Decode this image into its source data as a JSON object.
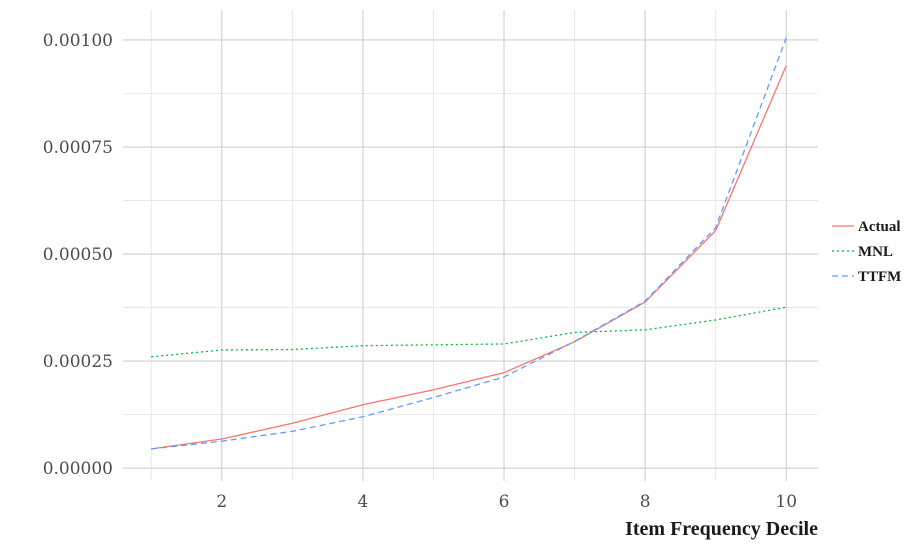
{
  "chart_data": {
    "type": "line",
    "xlabel": "Item Frequency Decile",
    "ylabel": "",
    "x": [
      1,
      2,
      3,
      4,
      5,
      6,
      7,
      8,
      9,
      10
    ],
    "xlim": [
      0.6,
      10.45
    ],
    "ylim": [
      -3e-05,
      0.00107
    ],
    "x_ticks": [
      2,
      4,
      6,
      8,
      10
    ],
    "x_tick_labels": [
      "2",
      "4",
      "6",
      "8",
      "10"
    ],
    "y_ticks": [
      0.0,
      0.00025,
      0.0005,
      0.00075,
      0.001
    ],
    "y_tick_labels": [
      "0.00000",
      "0.00025",
      "0.00050",
      "0.00075",
      "0.00100"
    ],
    "grid": true,
    "legend_position": "right",
    "series": [
      {
        "name": "Actual",
        "color": "#F8766D",
        "dash": "solid",
        "values": [
          4.5e-05,
          6.8e-05,
          0.000105,
          0.000148,
          0.000183,
          0.000223,
          0.000295,
          0.000388,
          0.000555,
          0.00094
        ]
      },
      {
        "name": "MNL",
        "color": "#00BA38",
        "dash": "dotted",
        "values": [
          0.00026,
          0.000276,
          0.000277,
          0.000286,
          0.000288,
          0.00029,
          0.000317,
          0.000323,
          0.000346,
          0.000376
        ]
      },
      {
        "name": "TTFM",
        "color": "#619CFF",
        "dash": "dashed",
        "values": [
          4.5e-05,
          6.3e-05,
          8.6e-05,
          0.00012,
          0.000165,
          0.000213,
          0.000296,
          0.00039,
          0.000562,
          0.001005
        ]
      }
    ]
  }
}
